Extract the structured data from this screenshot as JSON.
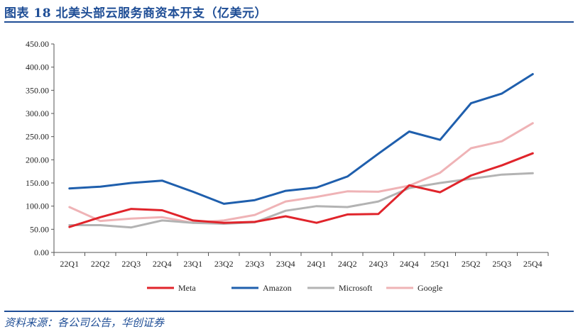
{
  "header": {
    "title": "图表 18 北美头部云服务商资本开支（亿美元）"
  },
  "footer": {
    "source": "资料来源：各公司公告，华创证券"
  },
  "chart_data": {
    "type": "line",
    "title": "北美头部云服务商资本开支（亿美元）",
    "xlabel": "",
    "ylabel": "",
    "ylim": [
      0,
      450
    ],
    "y_ticks": [
      "0.00",
      "50.00",
      "100.00",
      "150.00",
      "200.00",
      "250.00",
      "300.00",
      "350.00",
      "400.00",
      "450.00"
    ],
    "categories": [
      "22Q1",
      "22Q2",
      "22Q3",
      "22Q4",
      "23Q1",
      "23Q2",
      "23Q3",
      "23Q4",
      "24Q1",
      "24Q2",
      "24Q3",
      "24Q4",
      "25Q1",
      "25Q2",
      "25Q3",
      "25Q4"
    ],
    "legend_position": "bottom",
    "grid": false,
    "series": [
      {
        "name": "Meta",
        "color": "#e0242b",
        "values": [
          55,
          76,
          94,
          91,
          69,
          64,
          66,
          78,
          64,
          82,
          83,
          145,
          130,
          166,
          188,
          214
        ]
      },
      {
        "name": "Amazon",
        "color": "#1f5fad",
        "values": [
          138,
          142,
          150,
          155,
          131,
          105,
          113,
          133,
          140,
          164,
          213,
          261,
          243,
          322,
          343,
          385
        ]
      },
      {
        "name": "Microsoft",
        "color": "#b3b3b3",
        "values": [
          59,
          59,
          54,
          69,
          64,
          62,
          65,
          90,
          100,
          98,
          110,
          139,
          150,
          159,
          168,
          171
        ]
      },
      {
        "name": "Google",
        "color": "#efb3b6",
        "values": [
          98,
          68,
          73,
          76,
          64,
          69,
          81,
          110,
          120,
          132,
          131,
          144,
          172,
          225,
          240,
          279
        ]
      }
    ]
  }
}
